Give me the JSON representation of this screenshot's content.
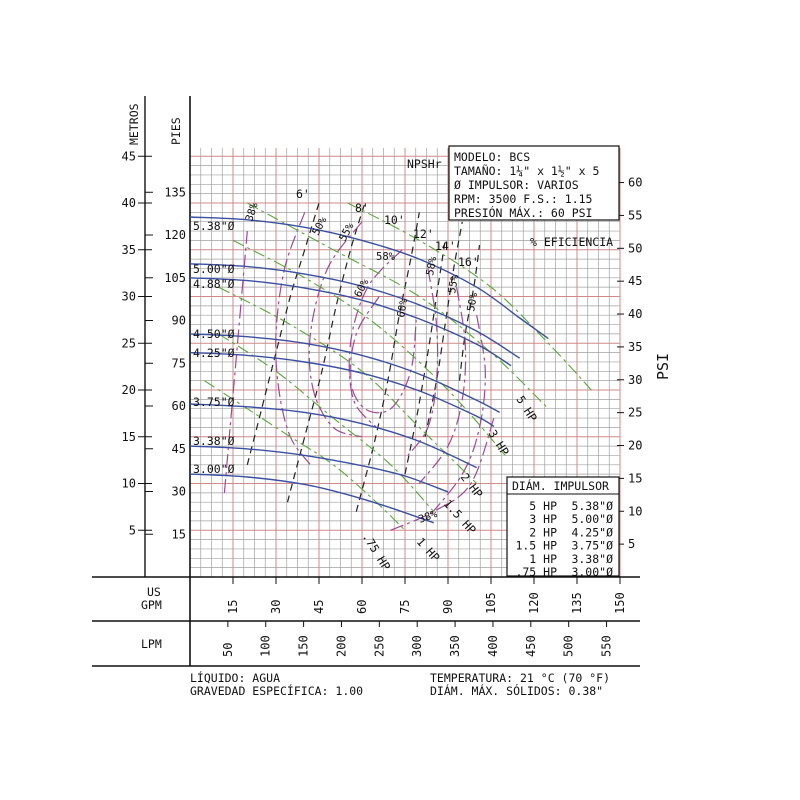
{
  "chart_data": {
    "type": "line",
    "axes": {
      "metros_title": "METROS",
      "pies_title": "PIES",
      "psi_title": "PSI",
      "us_gpm_title_1": "US",
      "us_gpm_title_2": "GPM",
      "lpm_title": "LPM",
      "x_range_gpm": [
        0,
        150
      ],
      "metros_ticks": [
        "5",
        "10",
        "15",
        "20",
        "25",
        "30",
        "35",
        "40",
        "45"
      ],
      "pies_ticks": [
        "15",
        "30",
        "45",
        "60",
        "75",
        "90",
        "105",
        "120",
        "135"
      ],
      "psi_ticks": [
        "5",
        "10",
        "15",
        "20",
        "25",
        "30",
        "35",
        "40",
        "45",
        "50",
        "55",
        "60"
      ],
      "gpm_ticks": [
        "15",
        "30",
        "45",
        "60",
        "75",
        "90",
        "105",
        "120",
        "135",
        "150"
      ],
      "lpm_ticks": [
        "50",
        "100",
        "150",
        "200",
        "250",
        "300",
        "350",
        "400",
        "450",
        "500",
        "550"
      ],
      "grid": true
    },
    "info_box": {
      "line1": "MODELO: BCS",
      "line2": "TAMAÑO: 1¼\" x 1½\" x 5",
      "line3": "Ø IMPULSOR: VARIOS",
      "line4": "RPM: 3500   F.S.: 1.15",
      "line5": "PRESIÓN MÁX.: 60 PSI"
    },
    "npshr_label": "NPSHr",
    "eff_label": "% EFICIENCIA",
    "impeller_curves": [
      {
        "name": "5.38\"Ø",
        "points": [
          [
            0,
            38.5
          ],
          [
            20,
            38.2
          ],
          [
            40,
            37.4
          ],
          [
            60,
            36.0
          ],
          [
            80,
            34.0
          ],
          [
            100,
            31.0
          ],
          [
            115,
            27.7
          ],
          [
            125,
            25.5
          ]
        ]
      },
      {
        "name": "5.00\"Ø",
        "points": [
          [
            0,
            33.5
          ],
          [
            20,
            33.2
          ],
          [
            40,
            32.4
          ],
          [
            60,
            31.1
          ],
          [
            80,
            29.1
          ],
          [
            100,
            26.3
          ],
          [
            115,
            23.4
          ]
        ]
      },
      {
        "name": "4.88\"Ø",
        "points": [
          [
            0,
            32.0
          ],
          [
            20,
            31.7
          ],
          [
            40,
            30.9
          ],
          [
            60,
            29.6
          ],
          [
            80,
            27.6
          ],
          [
            100,
            24.9
          ],
          [
            112,
            22.6
          ]
        ]
      },
      {
        "name": "4.50\"Ø",
        "points": [
          [
            0,
            26.0
          ],
          [
            20,
            25.7
          ],
          [
            40,
            25.0
          ],
          [
            60,
            23.7
          ],
          [
            80,
            21.7
          ],
          [
            100,
            18.9
          ],
          [
            108,
            17.6
          ]
        ]
      },
      {
        "name": "4.25\"Ø",
        "points": [
          [
            0,
            24.0
          ],
          [
            20,
            23.7
          ],
          [
            40,
            23.0
          ],
          [
            60,
            21.8
          ],
          [
            80,
            19.9
          ],
          [
            100,
            17.2
          ],
          [
            106,
            16.1
          ]
        ]
      },
      {
        "name": "3.75\"Ø",
        "points": [
          [
            0,
            18.5
          ],
          [
            20,
            18.2
          ],
          [
            40,
            17.6
          ],
          [
            60,
            16.4
          ],
          [
            80,
            14.5
          ],
          [
            100,
            11.7
          ]
        ]
      },
      {
        "name": "3.38\"Ø",
        "points": [
          [
            0,
            14.0
          ],
          [
            20,
            13.7
          ],
          [
            40,
            13.0
          ],
          [
            60,
            11.9
          ],
          [
            75,
            10.8
          ],
          [
            90,
            9.1
          ]
        ]
      },
      {
        "name": "3.00\"Ø",
        "points": [
          [
            0,
            11.0
          ],
          [
            20,
            10.7
          ],
          [
            40,
            9.9
          ],
          [
            55,
            8.8
          ],
          [
            70,
            7.4
          ],
          [
            85,
            5.8
          ]
        ]
      }
    ],
    "npshr_curves": [
      {
        "name": "6'",
        "points": [
          [
            20,
            12
          ],
          [
            25,
            18
          ],
          [
            30,
            24
          ],
          [
            35,
            30
          ],
          [
            40,
            35
          ],
          [
            45,
            40
          ]
        ]
      },
      {
        "name": "8'",
        "points": [
          [
            34,
            8
          ],
          [
            40,
            15
          ],
          [
            46,
            22
          ],
          [
            51,
            29
          ],
          [
            56,
            35
          ],
          [
            61,
            40
          ]
        ]
      },
      {
        "name": "10'",
        "points": [
          [
            58,
            7
          ],
          [
            64,
            14
          ],
          [
            69,
            21
          ],
          [
            73,
            28
          ],
          [
            77,
            34
          ],
          [
            80,
            39
          ]
        ]
      },
      {
        "name": "12'",
        "points": [
          [
            75,
            11
          ],
          [
            79,
            17
          ],
          [
            83,
            24
          ],
          [
            86,
            30
          ],
          [
            89,
            36
          ]
        ]
      },
      {
        "name": "14'",
        "points": [
          [
            82,
            15
          ],
          [
            86,
            21
          ],
          [
            89,
            27
          ],
          [
            92,
            33
          ],
          [
            95,
            38
          ]
        ]
      },
      {
        "name": "16'",
        "points": [
          [
            94,
            21
          ],
          [
            96,
            26
          ],
          [
            99,
            31
          ],
          [
            101,
            35.5
          ]
        ]
      }
    ],
    "hp_curves": [
      {
        "name": ".75 HP",
        "points": [
          [
            5,
            21
          ],
          [
            20,
            18
          ],
          [
            35,
            15
          ],
          [
            50,
            12
          ],
          [
            65,
            8
          ],
          [
            75,
            5
          ]
        ]
      },
      {
        "name": "1 HP",
        "points": [
          [
            10,
            26
          ],
          [
            30,
            22
          ],
          [
            50,
            17
          ],
          [
            70,
            12
          ],
          [
            85,
            7
          ]
        ]
      },
      {
        "name": "1.5 HP",
        "points": [
          [
            10,
            31
          ],
          [
            35,
            27
          ],
          [
            60,
            22
          ],
          [
            80,
            16
          ],
          [
            100,
            10
          ]
        ]
      },
      {
        "name": "2 HP",
        "points": [
          [
            15,
            36
          ],
          [
            40,
            32
          ],
          [
            65,
            27
          ],
          [
            90,
            20
          ],
          [
            110,
            13
          ]
        ]
      },
      {
        "name": "3 HP",
        "points": [
          [
            20,
            40
          ],
          [
            50,
            35
          ],
          [
            80,
            30
          ],
          [
            105,
            24
          ],
          [
            125,
            18
          ]
        ]
      },
      {
        "name": "5 HP",
        "points": [
          [
            55,
            40
          ],
          [
            80,
            36
          ],
          [
            105,
            31
          ],
          [
            125,
            25
          ],
          [
            140,
            20
          ]
        ]
      }
    ],
    "efficiency_curves": [
      {
        "name": "38%",
        "points": [
          [
            12,
            9
          ],
          [
            14,
            16
          ],
          [
            16,
            23
          ],
          [
            18,
            30
          ],
          [
            20,
            37
          ]
        ]
      },
      {
        "name": "50%",
        "points": [
          [
            40,
            39
          ],
          [
            33,
            33
          ],
          [
            30,
            26
          ],
          [
            31,
            20
          ],
          [
            35,
            15
          ],
          [
            42,
            12
          ]
        ]
      },
      {
        "name": "55%",
        "points": [
          [
            60,
            38
          ],
          [
            48,
            33
          ],
          [
            42,
            26
          ],
          [
            43,
            20
          ],
          [
            50,
            16
          ],
          [
            60,
            15
          ]
        ]
      },
      {
        "name": "58%",
        "points": [
          [
            74,
            35
          ],
          [
            62,
            31
          ],
          [
            56,
            25
          ],
          [
            57,
            19
          ],
          [
            65,
            16
          ]
        ]
      },
      {
        "name": "60%",
        "points": [
          [
            66,
            30
          ],
          [
            58,
            26
          ],
          [
            56,
            21
          ],
          [
            61,
            18
          ],
          [
            70,
            18
          ],
          [
            77,
            22
          ],
          [
            79,
            28
          ]
        ]
      },
      {
        "name": "58%",
        "points": [
          [
            83,
            33
          ],
          [
            86,
            27
          ],
          [
            86,
            21
          ],
          [
            83,
            16
          ],
          [
            76,
            13
          ]
        ]
      },
      {
        "name": "55%",
        "points": [
          [
            93,
            31
          ],
          [
            96,
            25
          ],
          [
            95,
            19
          ],
          [
            90,
            14
          ],
          [
            80,
            10
          ]
        ]
      },
      {
        "name": "50%",
        "points": [
          [
            100,
            28
          ],
          [
            103,
            22
          ],
          [
            101,
            16
          ],
          [
            95,
            11
          ],
          [
            82,
            6
          ]
        ]
      },
      {
        "name": "38%",
        "points": [
          [
            106,
            17
          ],
          [
            98,
            10
          ],
          [
            85,
            7
          ],
          [
            70,
            5
          ]
        ]
      }
    ],
    "legend": {
      "title": "DIÁM. IMPULSOR",
      "rows": [
        {
          "hp": "5 HP",
          "diam": "5.38\"Ø"
        },
        {
          "hp": "3 HP",
          "diam": "5.00\"Ø"
        },
        {
          "hp": "2 HP",
          "diam": "4.25\"Ø"
        },
        {
          "hp": "1.5 HP",
          "diam": "3.75\"Ø"
        },
        {
          "hp": "1 HP",
          "diam": "3.38\"Ø"
        },
        {
          "hp": ".75 HP",
          "diam": "3.00\"Ø"
        }
      ]
    }
  },
  "footer": {
    "liquid": "LÍQUIDO: AGUA",
    "gravity": "GRAVEDAD ESPECÍFICA: 1.00",
    "temperature": "TEMPERATURA: 21 °C (70 °F)",
    "solids": "DIÁM. MÁX. SÓLIDOS: 0.38\""
  },
  "colors": {
    "grid_red": "#d08a8a",
    "grid_gray": "#a0a0a0",
    "impeller_blue": "#3b4fa3",
    "hp_green": "#5aa83a",
    "efficiency_purple": "#a04898",
    "npsh_black": "#222222"
  }
}
